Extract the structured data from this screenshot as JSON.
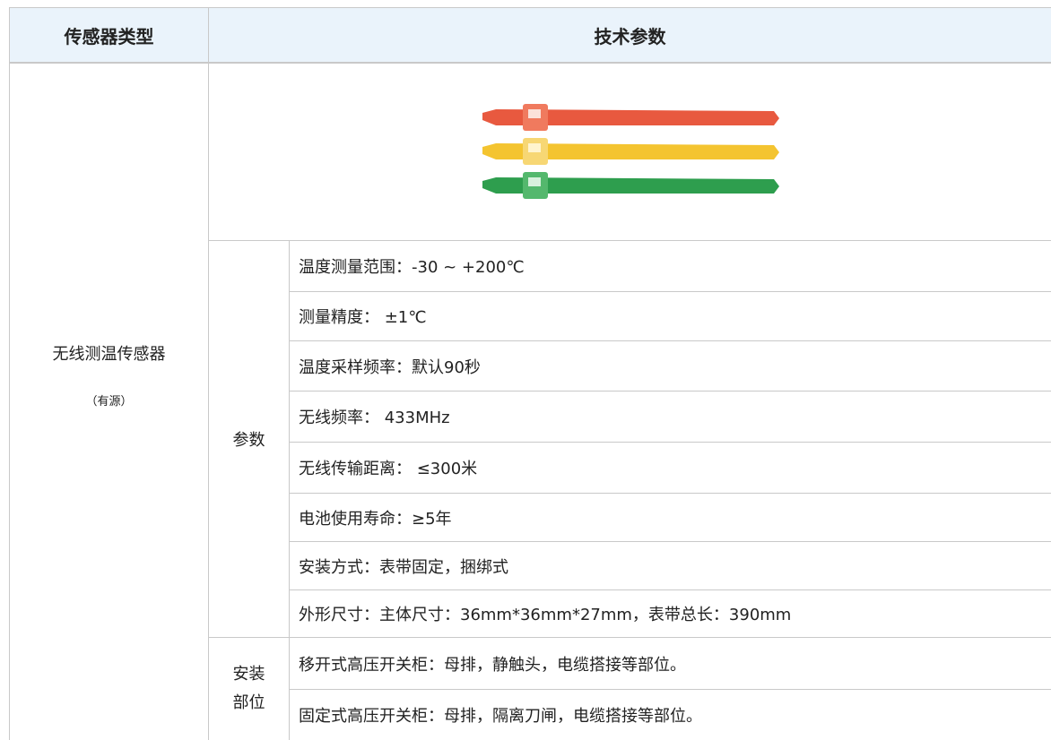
{
  "header": {
    "columns": [
      "传感器类型",
      "技术参数"
    ]
  },
  "sensor": {
    "name": "无线测温传感器",
    "note": "（有源）"
  },
  "params": {
    "label": "参数",
    "items": [
      "温度测量范围：-30 ~ +200℃",
      "测量精度： ±1℃",
      "温度采样频率：默认90秒",
      "无线频率： 433MHz",
      "无线传输距离： ≤300米",
      "电池使用寿命：≥5年",
      "安装方式：表带固定，捆绑式",
      "外形尺寸：主体尺寸：36mm*36mm*27mm，表带总长：390mm"
    ]
  },
  "install": {
    "label": [
      "安装",
      "部位"
    ],
    "items": [
      "移开式高压开关柜：母排，静触头，电缆搭接等部位。",
      "固定式高压开关柜：母排，隔离刀闸，电缆搭接等部位。"
    ]
  }
}
